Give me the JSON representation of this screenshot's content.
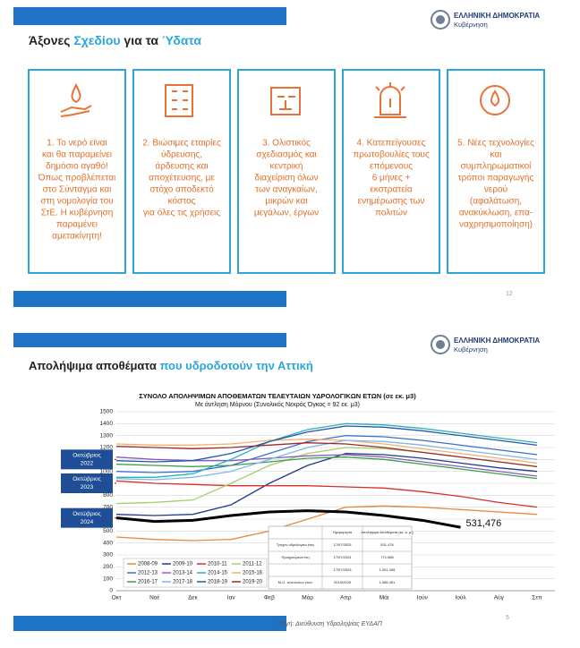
{
  "slides": [
    {
      "logo": {
        "title": "ΕΛΛΗΝΙΚΗ ΔΗΜΟΚΡΑΤΙΑ",
        "subtitle": "Κυβέρνηση"
      },
      "title": [
        "Άξονες ",
        "Σχεδίου",
        " για τα ",
        "Ύδατα"
      ],
      "cards": [
        [
          "1. Το νερό είναι",
          "και θα παραμείνει",
          "δημόσιο αγαθό!",
          "Όπως προβλέπεται",
          "στο Σύνταγμα και",
          "στη νομολογία του",
          "ΣτΕ. Η κυβέρνηση",
          "παραμένει",
          "αμετακίνητη!"
        ],
        [
          "2. Βιώσιμες εταιρίες",
          "ύδρευσης,",
          "άρδευσης και",
          "αποχέτευσης, με",
          "στόχο αποδεκτό",
          "κόστος",
          "για όλες τις χρήσεις"
        ],
        [
          "3. Ολιστικός",
          "σχεδιασμός και",
          "κεντρική",
          "διαχείριση όλων",
          "των αναγκαίων,",
          "μικρών και",
          "μεγάλων, έργων"
        ],
        [
          "4. Κατεπείγουσες",
          "πρωτοβουλίες τους",
          "επόμενους",
          "6 μήνες +",
          "εκστρατεία",
          "ενημέρωσης των",
          "πολιτών"
        ],
        [
          "5. Νέες τεχνολογίες",
          "και",
          "συμπληρωματικοί",
          "τρόποι παραγωγής",
          "νερού",
          "(αφαλάτωση,",
          "ανακύκλωση, επα-",
          "ναχρησιμοποίηση)"
        ]
      ],
      "page": "12"
    },
    {
      "logo": {
        "title": "ΕΛΛΗΝΙΚΗ ΔΗΜΟΚΡΑΤΙΑ",
        "subtitle": "Κυβέρνηση"
      },
      "title": [
        "Απολήψιμα αποθέματα ",
        "που υδροδοτούν την Αττική"
      ],
      "chart_data": {
        "type": "line",
        "title": "ΣΥΝΟΛΟ ΑΠΟΛΗΨΙΜΩΝ ΑΠΟΘΕΜΑΤΩΝ ΤΕΛΕΥΤΑΙΩΝ ΥΔΡΟΛΟΓΙΚΩΝ ΕΤΩΝ  (σε εκ. μ3)",
        "subtitle": "Με άντληση Μόρνου (Συνολικός Νεκρός Όγκος = 92 εκ. μ3)",
        "categories": [
          "Οκτ",
          "Νοέ",
          "Δεκ",
          "Ιαν",
          "Φεβ",
          "Μάρ",
          "Απρ",
          "Μάι",
          "Ιούν",
          "Ιούλ",
          "Αύγ",
          "Σεπ"
        ],
        "ylim": [
          0,
          1500
        ],
        "yticks": [
          0,
          100,
          200,
          300,
          400,
          500,
          600,
          700,
          800,
          900,
          1000,
          1100,
          1200,
          1300,
          1400,
          1500
        ],
        "grid": true,
        "series": [
          {
            "name": "2008-09",
            "color": "#e8883a",
            "values": [
              450,
              430,
              420,
              430,
              500,
              600,
              700,
              710,
              700,
              680,
              660,
              640
            ]
          },
          {
            "name": "2009-10",
            "color": "#1f3b8c",
            "values": [
              640,
              630,
              640,
              720,
              900,
              1050,
              1150,
              1140,
              1110,
              1070,
              1030,
              1000
            ]
          },
          {
            "name": "2010-11",
            "color": "#d9302a",
            "values": [
              920,
              900,
              890,
              880,
              880,
              880,
              870,
              860,
              830,
              790,
              740,
              700
            ]
          },
          {
            "name": "2011-12",
            "color": "#a6cf6a",
            "values": [
              730,
              740,
              760,
              900,
              1050,
              1150,
              1200,
              1190,
              1160,
              1120,
              1080,
              1040
            ]
          },
          {
            "name": "2012-13",
            "color": "#3a6fd0",
            "values": [
              1000,
              990,
              1000,
              1050,
              1150,
              1250,
              1300,
              1290,
              1260,
              1220,
              1180,
              1140
            ]
          },
          {
            "name": "2013-14",
            "color": "#8a5ab8",
            "values": [
              1120,
              1100,
              1090,
              1090,
              1110,
              1130,
              1140,
              1120,
              1080,
              1040,
              1000,
              960
            ]
          },
          {
            "name": "2014-15",
            "color": "#2ab0b8",
            "values": [
              950,
              950,
              980,
              1100,
              1250,
              1350,
              1400,
              1390,
              1360,
              1320,
              1280,
              1240
            ]
          },
          {
            "name": "2015-16",
            "color": "#f4b06a",
            "values": [
              1230,
              1220,
              1220,
              1230,
              1260,
              1270,
              1260,
              1230,
              1190,
              1150,
              1110,
              1070
            ]
          },
          {
            "name": "2016-17",
            "color": "#3aa048",
            "values": [
              1060,
              1050,
              1040,
              1050,
              1080,
              1110,
              1120,
              1100,
              1060,
              1020,
              980,
              940
            ]
          },
          {
            "name": "2017-18",
            "color": "#7fb8e8",
            "values": [
              940,
              930,
              950,
              1000,
              1100,
              1200,
              1260,
              1250,
              1220,
              1180,
              1140,
              1100
            ]
          },
          {
            "name": "2018-19",
            "color": "#2456b0",
            "values": [
              1090,
              1080,
              1090,
              1150,
              1250,
              1330,
              1380,
              1370,
              1340,
              1300,
              1260,
              1220
            ]
          },
          {
            "name": "2019-20",
            "color": "#a0282a",
            "values": [
              1210,
              1200,
              1190,
              1200,
              1220,
              1240,
              1230,
              1200,
              1160,
              1120,
              1080,
              1040
            ]
          },
          {
            "color": "#000000",
            "values": [
              610,
              580,
              590,
              630,
              660,
              670,
              660,
              630,
              590,
              531.476,
              null,
              null
            ],
            "value_labels": [
              null,
              null,
              null,
              null,
              null,
              null,
              null,
              null,
              null,
              "531,476",
              null,
              null
            ]
          }
        ],
        "annotations": [
          {
            "lines": [
              "Οκτώβριος",
              "2022"
            ],
            "value": 1100
          },
          {
            "lines": [
              "Οκτώβριος",
              "2023"
            ],
            "value": 900
          },
          {
            "lines": [
              "Οκτώβριος",
              "2024"
            ],
            "value": 610
          }
        ],
        "table": {
          "header": [
            "Ημερομηνία",
            "Απολήψιμα Αποθέματα (εκ. κ. μ.)"
          ],
          "rows": [
            [
              "Τρέχον υδρολογικό έτος",
              "17/07/2025",
              "531,476"
            ],
            [
              "Προηγούμενα έτη",
              "17/07/2024",
              "771,986"
            ],
            [
              "",
              "17/07/2023",
              "1,091,395"
            ],
            [
              "Μ.Ο. τελευταίων ετών",
              "2019/2025",
              "1,086,451"
            ]
          ]
        }
      },
      "source": "Πηγή: Διεύθυνση Υδροληψίας ΕΥΔΑΠ",
      "page": "5"
    }
  ]
}
